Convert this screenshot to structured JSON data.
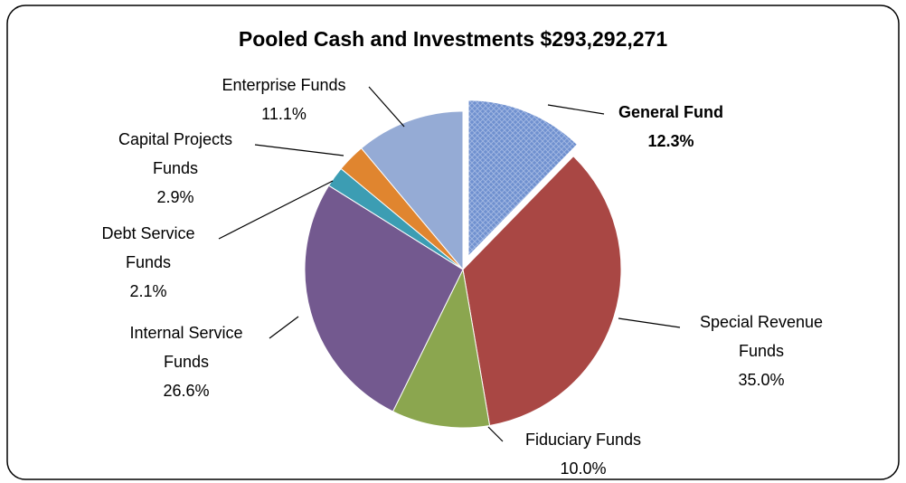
{
  "chart_data": {
    "type": "pie",
    "title": "Pooled Cash and Investments $293,292,271",
    "categories": [
      "General Fund",
      "Special Revenue Funds",
      "Fiduciary Funds",
      "Internal Service Funds",
      "Debt Service Funds",
      "Capital Projects Funds",
      "Enterprise Funds"
    ],
    "values": [
      12.3,
      35.0,
      10.0,
      26.6,
      2.1,
      2.9,
      11.1
    ],
    "value_labels": [
      "12.3%",
      "35.0%",
      "10.0%",
      "26.6%",
      "2.1%",
      "2.9%",
      "11.1%"
    ],
    "colors": [
      "#6f90cf",
      "#a94744",
      "#8ba64f",
      "#73598f",
      "#3c9db3",
      "#e0852f",
      "#95abd5"
    ],
    "exploded": "General Fund"
  }
}
